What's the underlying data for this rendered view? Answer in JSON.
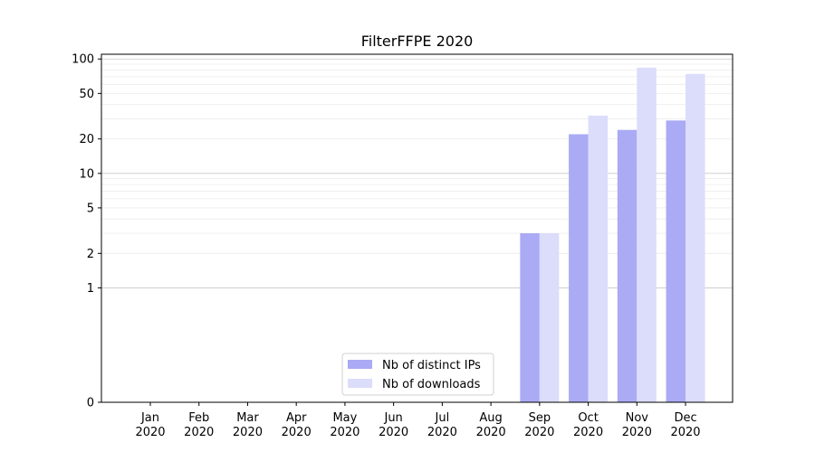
{
  "chart_data": {
    "type": "bar",
    "title": "FilterFFPE 2020",
    "xlabel": "",
    "ylabel": "",
    "y_scale": "symlog",
    "ylim": [
      0,
      110
    ],
    "y_ticks": [
      0,
      1,
      2,
      5,
      10,
      20,
      50,
      100
    ],
    "y_tick_labels": [
      "0",
      "1",
      "2",
      "5",
      "10",
      "20",
      "50",
      "100"
    ],
    "categories": [
      {
        "month": "Jan",
        "year": "2020"
      },
      {
        "month": "Feb",
        "year": "2020"
      },
      {
        "month": "Mar",
        "year": "2020"
      },
      {
        "month": "Apr",
        "year": "2020"
      },
      {
        "month": "May",
        "year": "2020"
      },
      {
        "month": "Jun",
        "year": "2020"
      },
      {
        "month": "Jul",
        "year": "2020"
      },
      {
        "month": "Aug",
        "year": "2020"
      },
      {
        "month": "Sep",
        "year": "2020"
      },
      {
        "month": "Oct",
        "year": "2020"
      },
      {
        "month": "Nov",
        "year": "2020"
      },
      {
        "month": "Dec",
        "year": "2020"
      }
    ],
    "series": [
      {
        "name": "Nb of distinct IPs",
        "color": "#aaaaf5",
        "values": [
          0,
          0,
          0,
          0,
          0,
          0,
          0,
          0,
          3,
          22,
          24,
          29
        ]
      },
      {
        "name": "Nb of downloads",
        "color": "#dcdcfb",
        "values": [
          0,
          0,
          0,
          0,
          0,
          0,
          0,
          0,
          3,
          32,
          84,
          74
        ]
      }
    ],
    "grid": true,
    "legend_position": "bottom-center"
  }
}
